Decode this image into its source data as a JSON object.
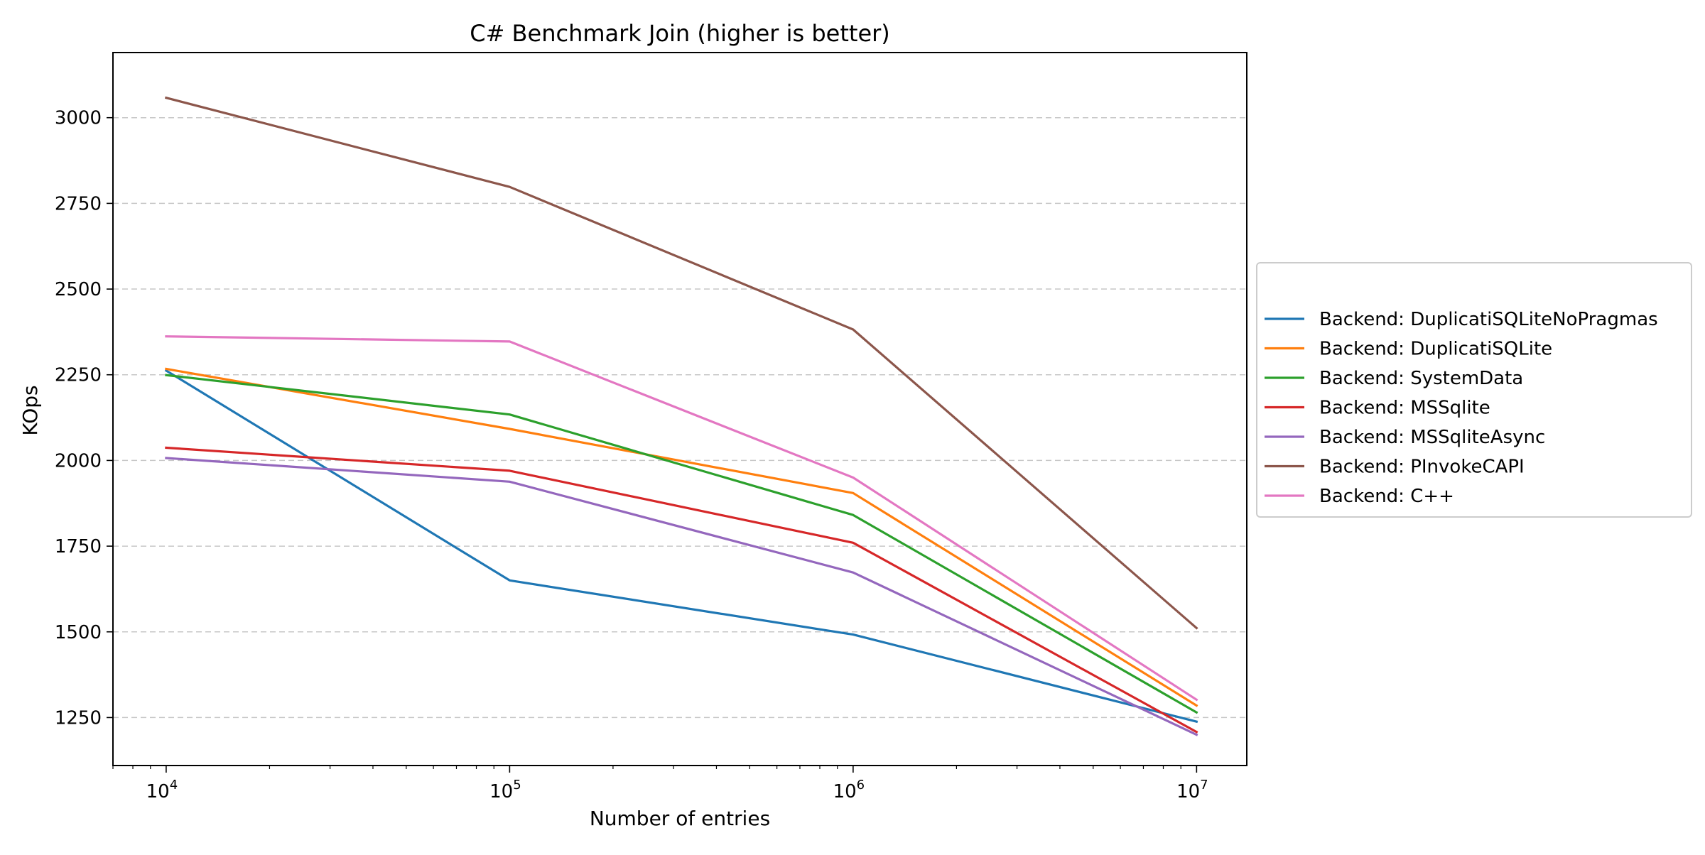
{
  "chart_data": {
    "type": "line",
    "title": "C# Benchmark Join (higher is better)",
    "xlabel": "Number of entries",
    "ylabel": "KOps",
    "xscale": "log",
    "xlim": [
      7000,
      14000000
    ],
    "ylim": [
      1110,
      3190
    ],
    "x": [
      10000,
      100000,
      1000000,
      10000000
    ],
    "x_tick_labels": [
      {
        "base": "10",
        "exp": "4"
      },
      {
        "base": "10",
        "exp": "5"
      },
      {
        "base": "10",
        "exp": "6"
      },
      {
        "base": "10",
        "exp": "7"
      }
    ],
    "y_ticks": [
      1250,
      1500,
      1750,
      2000,
      2250,
      2500,
      2750,
      3000
    ],
    "y_tick_labels": [
      "1250",
      "1500",
      "1750",
      "2000",
      "2250",
      "2500",
      "2750",
      "3000"
    ],
    "grid": "horizontal dashed",
    "legend_position": "right, outside",
    "series": [
      {
        "name": "Backend: DuplicatiSQLiteNoPragmas",
        "color": "#1f77b4",
        "values": [
          2262,
          1650,
          1492,
          1238
        ]
      },
      {
        "name": "Backend: DuplicatiSQLite",
        "color": "#ff7f0e",
        "values": [
          2267,
          2092,
          1905,
          1285
        ]
      },
      {
        "name": "Backend: SystemData",
        "color": "#2ca02c",
        "values": [
          2249,
          2134,
          1841,
          1265
        ]
      },
      {
        "name": "Backend: MSSqlite",
        "color": "#d62728",
        "values": [
          2037,
          1970,
          1760,
          1208
        ]
      },
      {
        "name": "Backend: MSSqliteAsync",
        "color": "#9467bd",
        "values": [
          2007,
          1938,
          1673,
          1200
        ]
      },
      {
        "name": "Backend: PInvokeCAPI",
        "color": "#8c564b",
        "values": [
          3058,
          2798,
          2382,
          1511
        ]
      },
      {
        "name": "Backend: C++",
        "color": "#e377c2",
        "values": [
          2362,
          2347,
          1950,
          1302
        ]
      }
    ]
  }
}
